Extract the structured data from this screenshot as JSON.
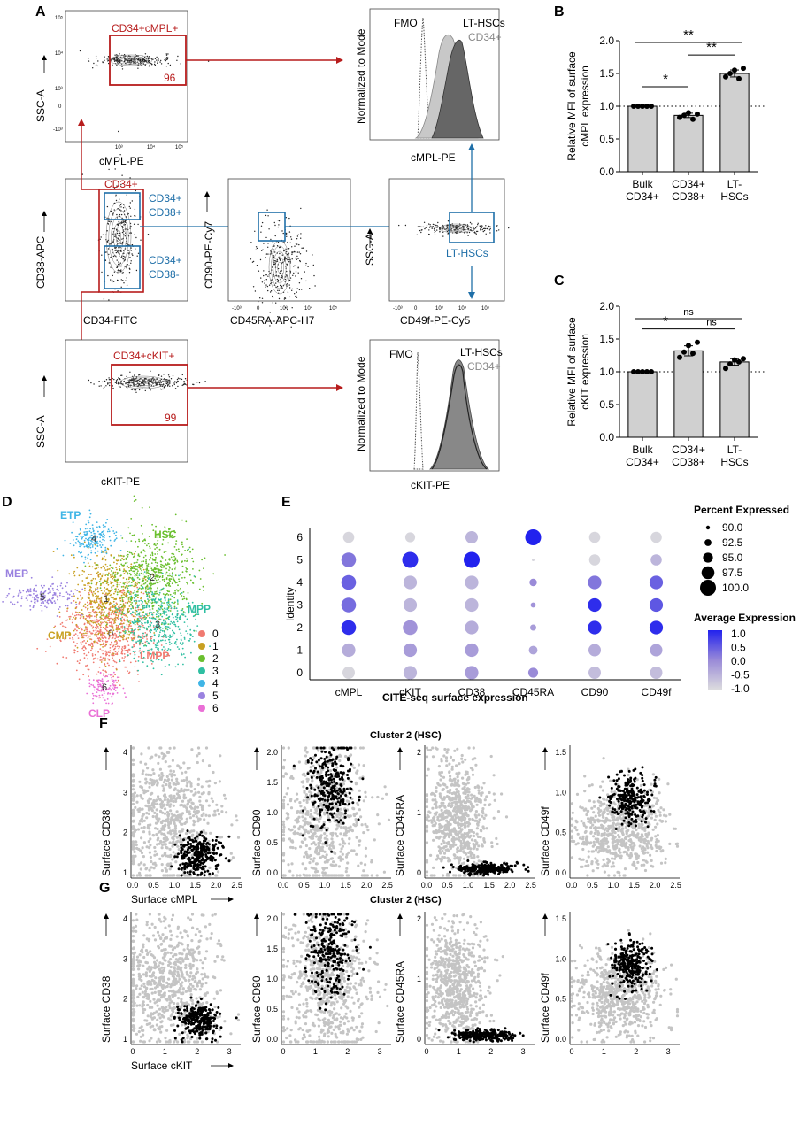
{
  "panels": {
    "A": {
      "letter": "A",
      "plots": {
        "cmpl_gate": {
          "xlabel": "cMPL-PE",
          "ylabel": "SSC-A",
          "gate_label": "CD34+cMPL+",
          "gate_pct": "96",
          "xticks": [
            "10³",
            "10⁴",
            "10⁵"
          ],
          "yticks": [
            "10⁵",
            "10⁴",
            "10³",
            "0",
            "-10³"
          ]
        },
        "cd34_cd38": {
          "xlabel": "CD34-FITC",
          "ylabel": "CD38-APC",
          "gate_cd34": "CD34+",
          "gate_hi": "CD34+\nCD38+",
          "gate_lo": "CD34+\nCD38-"
        },
        "cd90_cd45ra": {
          "xlabel": "CD45RA-APC-H7",
          "ylabel": "CD90-PE-Cy7",
          "xticks": [
            "-10³",
            "0",
            "10³",
            "10⁴",
            "10⁵"
          ]
        },
        "cd49f": {
          "xlabel": "CD49f-PE-Cy5",
          "ylabel": "SSC-A",
          "gate_label": "LT-HSCs",
          "xticks": [
            "-10³",
            "0",
            "10³",
            "10⁴",
            "10⁵"
          ]
        },
        "ckit_gate": {
          "xlabel": "cKIT-PE",
          "ylabel": "SSC-A",
          "gate_label": "CD34+cKIT+",
          "gate_pct": "99"
        },
        "hist_cmpl": {
          "xlabel": "cMPL-PE",
          "ylabel": "Normalized to Mode",
          "fmo": "FMO",
          "lt": "LT-HSCs",
          "cd34": "CD34+"
        },
        "hist_ckit": {
          "xlabel": "cKIT-PE",
          "ylabel": "Normalized to Mode",
          "fmo": "FMO",
          "lt": "LT-HSCs",
          "cd34": "CD34+"
        }
      }
    },
    "B": {
      "letter": "B"
    },
    "C": {
      "letter": "C"
    },
    "D": {
      "letter": "D",
      "clusters": [
        {
          "name": "0",
          "label": "LMPP",
          "color": "#f07a70"
        },
        {
          "name": "1",
          "label": "CMP",
          "color": "#c8a021"
        },
        {
          "name": "2",
          "label": "HSC",
          "color": "#6abf2e"
        },
        {
          "name": "3",
          "label": "MPP",
          "color": "#2fbfa2"
        },
        {
          "name": "4",
          "label": "ETP",
          "color": "#3fb5e6"
        },
        {
          "name": "5",
          "label": "MEP",
          "color": "#9a82e0"
        },
        {
          "name": "6",
          "label": "CLP",
          "color": "#ea6fd6"
        }
      ]
    },
    "E": {
      "letter": "E",
      "ylabel": "Identity",
      "xlabel": "CITE-seq surface expression",
      "markers": [
        "cMPL",
        "cKIT",
        "CD38",
        "CD45RA",
        "CD90",
        "CD49f"
      ],
      "identities": [
        "0",
        "1",
        "2",
        "3",
        "4",
        "5",
        "6"
      ],
      "size_title": "Percent Expressed",
      "size_levels": [
        "90.0",
        "92.5",
        "95.0",
        "97.5",
        "100.0"
      ],
      "color_title": "Average Expression",
      "color_levels": [
        "1.0",
        "0.5",
        "0.0",
        "-0.5",
        "-1.0"
      ]
    },
    "F": {
      "letter": "F",
      "title": "Cluster 2 (HSC)",
      "plots": [
        {
          "ylabel": "Surface CD38",
          "xlabel": "Surface cMPL",
          "xticks": [
            "0.0",
            "0.5",
            "1.0",
            "1.5",
            "2.0",
            "2.5"
          ],
          "yticks": [
            "4",
            "3",
            "2",
            "1"
          ]
        },
        {
          "ylabel": "Surface CD90",
          "xticks": [
            "0.0",
            "0.5",
            "1.0",
            "1.5",
            "2.0",
            "2.5"
          ],
          "yticks": [
            "2.0",
            "1.5",
            "1.0",
            "0.5",
            "0.0"
          ]
        },
        {
          "ylabel": "Surface CD45RA",
          "xticks": [
            "0.0",
            "0.5",
            "1.0",
            "1.5",
            "2.0",
            "2.5"
          ],
          "yticks": [
            "2",
            "1",
            "0"
          ]
        },
        {
          "ylabel": "Surface CD49f",
          "xticks": [
            "0.0",
            "0.5",
            "1.0",
            "1.5",
            "2.0",
            "2.5"
          ],
          "yticks": [
            "1.5",
            "1.0",
            "0.5",
            "0.0"
          ]
        }
      ]
    },
    "G": {
      "letter": "G",
      "title": "Cluster 2 (HSC)",
      "plots": [
        {
          "ylabel": "Surface CD38",
          "xlabel": "Surface cKIT",
          "xticks": [
            "0",
            "1",
            "2",
            "3"
          ],
          "yticks": [
            "4",
            "3",
            "2",
            "1"
          ]
        },
        {
          "ylabel": "Surface CD90",
          "xticks": [
            "0",
            "1",
            "2",
            "3"
          ],
          "yticks": [
            "2.0",
            "1.5",
            "1.0",
            "0.5",
            "0.0"
          ]
        },
        {
          "ylabel": "Surface CD45RA",
          "xticks": [
            "0",
            "1",
            "2",
            "3"
          ],
          "yticks": [
            "2",
            "1",
            "0"
          ]
        },
        {
          "ylabel": "Surface CD49f",
          "xticks": [
            "0",
            "1",
            "2",
            "3"
          ],
          "yticks": [
            "1.5",
            "1.0",
            "0.5",
            "0.0"
          ]
        }
      ]
    }
  },
  "chart_data": [
    {
      "type": "bar",
      "panel": "B",
      "categories": [
        "Bulk\nCD34+",
        "CD34+\nCD38+",
        "LT-\nHSCs"
      ],
      "values": [
        1.0,
        0.86,
        1.5
      ],
      "points": [
        [
          1.0,
          1.0,
          1.0,
          1.0,
          1.0
        ],
        [
          0.83,
          0.86,
          0.9,
          0.8,
          0.88
        ],
        [
          1.45,
          1.5,
          1.55,
          1.42,
          1.58
        ]
      ],
      "ylabel": "Relative MFI of surface\ncMPL expression",
      "ylim": [
        0,
        2.0
      ],
      "yticks": [
        "0.0",
        "0.5",
        "1.0",
        "1.5",
        "2.0"
      ],
      "reference_line": 1.0,
      "significance": [
        {
          "from": 0,
          "to": 1,
          "label": "*"
        },
        {
          "from": 1,
          "to": 2,
          "label": "**"
        },
        {
          "from": 0,
          "to": 2,
          "label": "**"
        }
      ]
    },
    {
      "type": "bar",
      "panel": "C",
      "categories": [
        "Bulk\nCD34+",
        "CD34+\nCD38+",
        "LT-\nHSCs"
      ],
      "values": [
        1.0,
        1.32,
        1.15
      ],
      "points": [
        [
          1.0,
          1.0,
          1.0,
          1.0,
          1.0
        ],
        [
          1.22,
          1.3,
          1.4,
          1.28,
          1.45
        ],
        [
          1.05,
          1.12,
          1.18,
          1.15,
          1.2
        ]
      ],
      "ylabel": "Relative MFI of surface\ncKIT expression",
      "ylim": [
        0,
        2.0
      ],
      "yticks": [
        "0.0",
        "0.5",
        "1.0",
        "1.5",
        "2.0"
      ],
      "reference_line": 1.0,
      "significance": [
        {
          "from": 0,
          "to": 1,
          "label": "*"
        },
        {
          "from": 1,
          "to": 2,
          "label": "ns"
        },
        {
          "from": 0,
          "to": 2,
          "label": "ns"
        }
      ]
    },
    {
      "type": "scatter",
      "panel": "E",
      "markers": [
        "cMPL",
        "cKIT",
        "CD38",
        "CD45RA",
        "CD90",
        "CD49f"
      ],
      "identities": [
        "0",
        "1",
        "2",
        "3",
        "4",
        "5",
        "6"
      ],
      "avg_expression": [
        [
          -0.9,
          -0.4,
          0.9,
          0.3,
          0.4,
          0.2,
          -0.9
        ],
        [
          -0.5,
          -0.2,
          -0.1,
          -0.5,
          -0.5,
          0.9,
          -0.9
        ],
        [
          -0.2,
          -0.2,
          -0.4,
          -0.5,
          -0.5,
          1.0,
          -0.5
        ],
        [
          0.0,
          -0.3,
          -0.2,
          -0.1,
          0.0,
          -0.9,
          1.0
        ],
        [
          -0.6,
          -0.4,
          0.9,
          0.9,
          0.2,
          -0.9,
          -0.9
        ],
        [
          -0.6,
          -0.3,
          0.9,
          0.5,
          0.4,
          -0.5,
          -0.9
        ]
      ],
      "pct_expressed": [
        [
          97,
          98,
          99,
          99,
          99,
          99,
          96
        ],
        [
          98,
          98,
          99,
          98,
          98,
          100,
          95
        ],
        [
          98,
          98,
          98,
          98,
          98,
          100,
          97
        ],
        [
          95,
          94,
          92,
          91,
          93,
          89,
          100
        ],
        [
          97,
          97,
          98,
          98,
          98,
          96,
          96
        ],
        [
          97,
          97,
          98,
          98,
          98,
          96,
          96
        ]
      ]
    }
  ]
}
